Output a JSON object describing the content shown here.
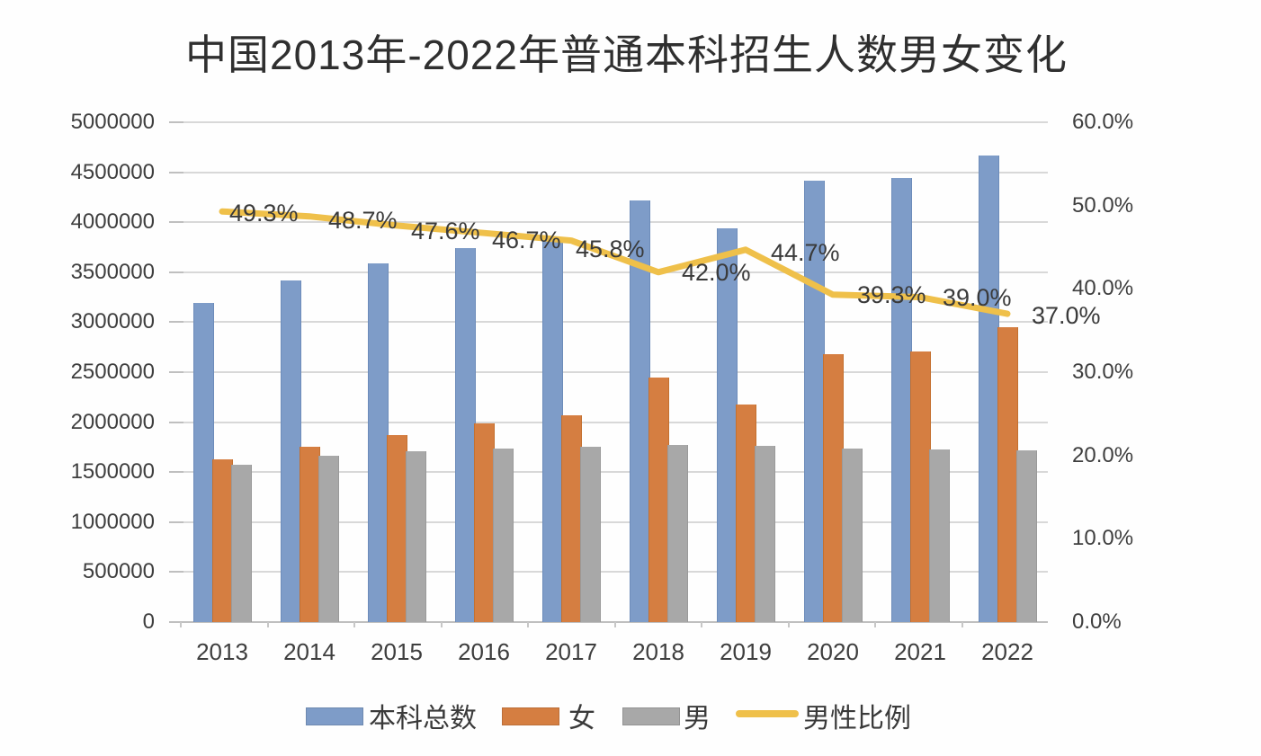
{
  "title": "中国2013年-2022年普通本科招生人数男女变化",
  "colors": {
    "total_bar": "#7e9cc8",
    "female_bar": "#d57e41",
    "male_bar": "#a8a8a8",
    "ratio_line": "#efc04a",
    "text": "#3e3e3e",
    "grid": "#d8d8d8"
  },
  "chart_data": {
    "type": "combo",
    "subtype": "grouped-bars-with-line",
    "categories": [
      "2013",
      "2014",
      "2015",
      "2016",
      "2017",
      "2018",
      "2019",
      "2020",
      "2021",
      "2022"
    ],
    "bar_series": [
      {
        "name": "本科总数",
        "color": "#7e9cc8",
        "values": [
          3190000,
          3420000,
          3590000,
          3740000,
          3820000,
          4220000,
          3940000,
          4420000,
          4440000,
          4670000
        ]
      },
      {
        "name": "女",
        "color": "#d57e41",
        "values": [
          1630000,
          1750000,
          1870000,
          1990000,
          2070000,
          2450000,
          2180000,
          2680000,
          2710000,
          2950000
        ]
      },
      {
        "name": "男",
        "color": "#a8a8a8",
        "values": [
          1570000,
          1660000,
          1710000,
          1740000,
          1750000,
          1770000,
          1760000,
          1740000,
          1730000,
          1720000
        ]
      }
    ],
    "line_series": {
      "name": "男性比例",
      "color": "#efc04a",
      "axis": "right",
      "values_pct": [
        49.3,
        48.7,
        47.6,
        46.7,
        45.8,
        42.0,
        44.7,
        39.3,
        39.0,
        37.0
      ],
      "point_labels": [
        "49.3%",
        "48.7%",
        "47.6%",
        "46.7%",
        "45.8%",
        "42.0%",
        "44.7%",
        "39.3%",
        "39.0%",
        "37.0%"
      ]
    },
    "left_axis": {
      "min": 0,
      "max": 5000000,
      "step": 500000,
      "tick_labels": [
        "5000000",
        "4500000",
        "4000000",
        "3500000",
        "3000000",
        "2500000",
        "2000000",
        "1500000",
        "1000000",
        "500000",
        "0"
      ]
    },
    "right_axis": {
      "min": 0,
      "max": 60,
      "step": 10,
      "tick_labels": [
        "60.0%",
        "50.0%",
        "40.0%",
        "30.0%",
        "20.0%",
        "10.0%",
        "0.0%"
      ]
    },
    "grid": "horizontal",
    "legend_position": "bottom",
    "legend": [
      {
        "label": "本科总数",
        "marker": "bar",
        "color": "#7e9cc8"
      },
      {
        "label": "女",
        "marker": "bar",
        "color": "#d57e41"
      },
      {
        "label": "男",
        "marker": "bar",
        "color": "#a8a8a8"
      },
      {
        "label": "男性比例",
        "marker": "line",
        "color": "#efc04a"
      }
    ]
  }
}
